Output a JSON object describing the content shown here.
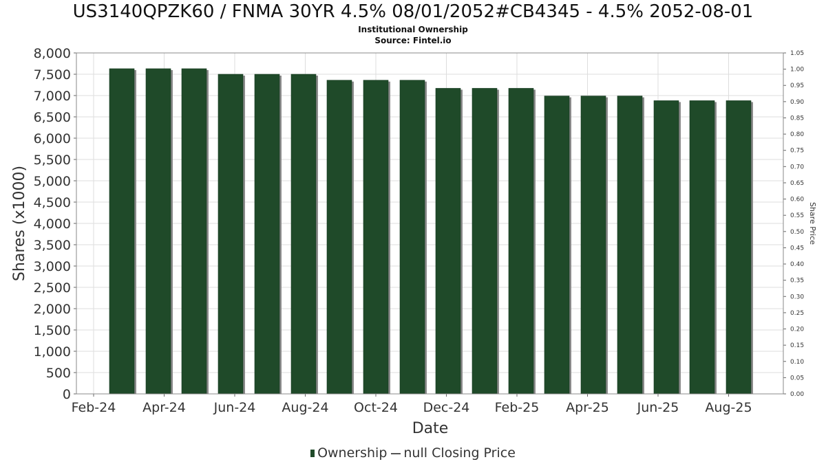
{
  "title": "US3140QPZK60 / FNMA 30YR 4.5% 08/01/2052#CB4345 - 4.5% 2052-08-01",
  "subtitle_1": "Institutional Ownership",
  "subtitle_2": "Source: Fintel.io",
  "colors": {
    "bar": "#1f4a29",
    "bar_shadow": "#8a8a8a",
    "grid": "#dddddd"
  },
  "legend": {
    "series_1": "Ownership",
    "series_2": "null Closing Price"
  },
  "chart_data": {
    "type": "bar",
    "xlabel": "Date",
    "ylabel": "Shares (x1000)",
    "y2label": "Share Price",
    "ylim": [
      0,
      8000
    ],
    "y2lim": [
      0,
      1.05
    ],
    "y_ticks": [
      "0",
      "500",
      "1,000",
      "1,500",
      "2,000",
      "2,500",
      "3,000",
      "3,500",
      "4,000",
      "4,500",
      "5,000",
      "5,500",
      "6,000",
      "6,500",
      "7,000",
      "7,500",
      "8,000"
    ],
    "y2_ticks": [
      "0.00",
      "0.05",
      "0.10",
      "0.15",
      "0.20",
      "0.25",
      "0.30",
      "0.35",
      "0.40",
      "0.45",
      "0.50",
      "0.55",
      "0.60",
      "0.65",
      "0.70",
      "0.75",
      "0.80",
      "0.85",
      "0.90",
      "0.95",
      "1.00",
      "1.05"
    ],
    "x_ticks": [
      "Feb-24",
      "Apr-24",
      "Jun-24",
      "Aug-24",
      "Oct-24",
      "Dec-24",
      "Feb-25",
      "Apr-25",
      "Jun-25",
      "Aug-25"
    ],
    "grid": true,
    "legend_position": "bottom",
    "series": [
      {
        "name": "Ownership",
        "values": [
          7630,
          7630,
          7630,
          7500,
          7500,
          7500,
          7360,
          7360,
          7360,
          7170,
          7170,
          7170,
          6990,
          6990,
          6990,
          6880,
          6880,
          6880
        ]
      }
    ]
  }
}
